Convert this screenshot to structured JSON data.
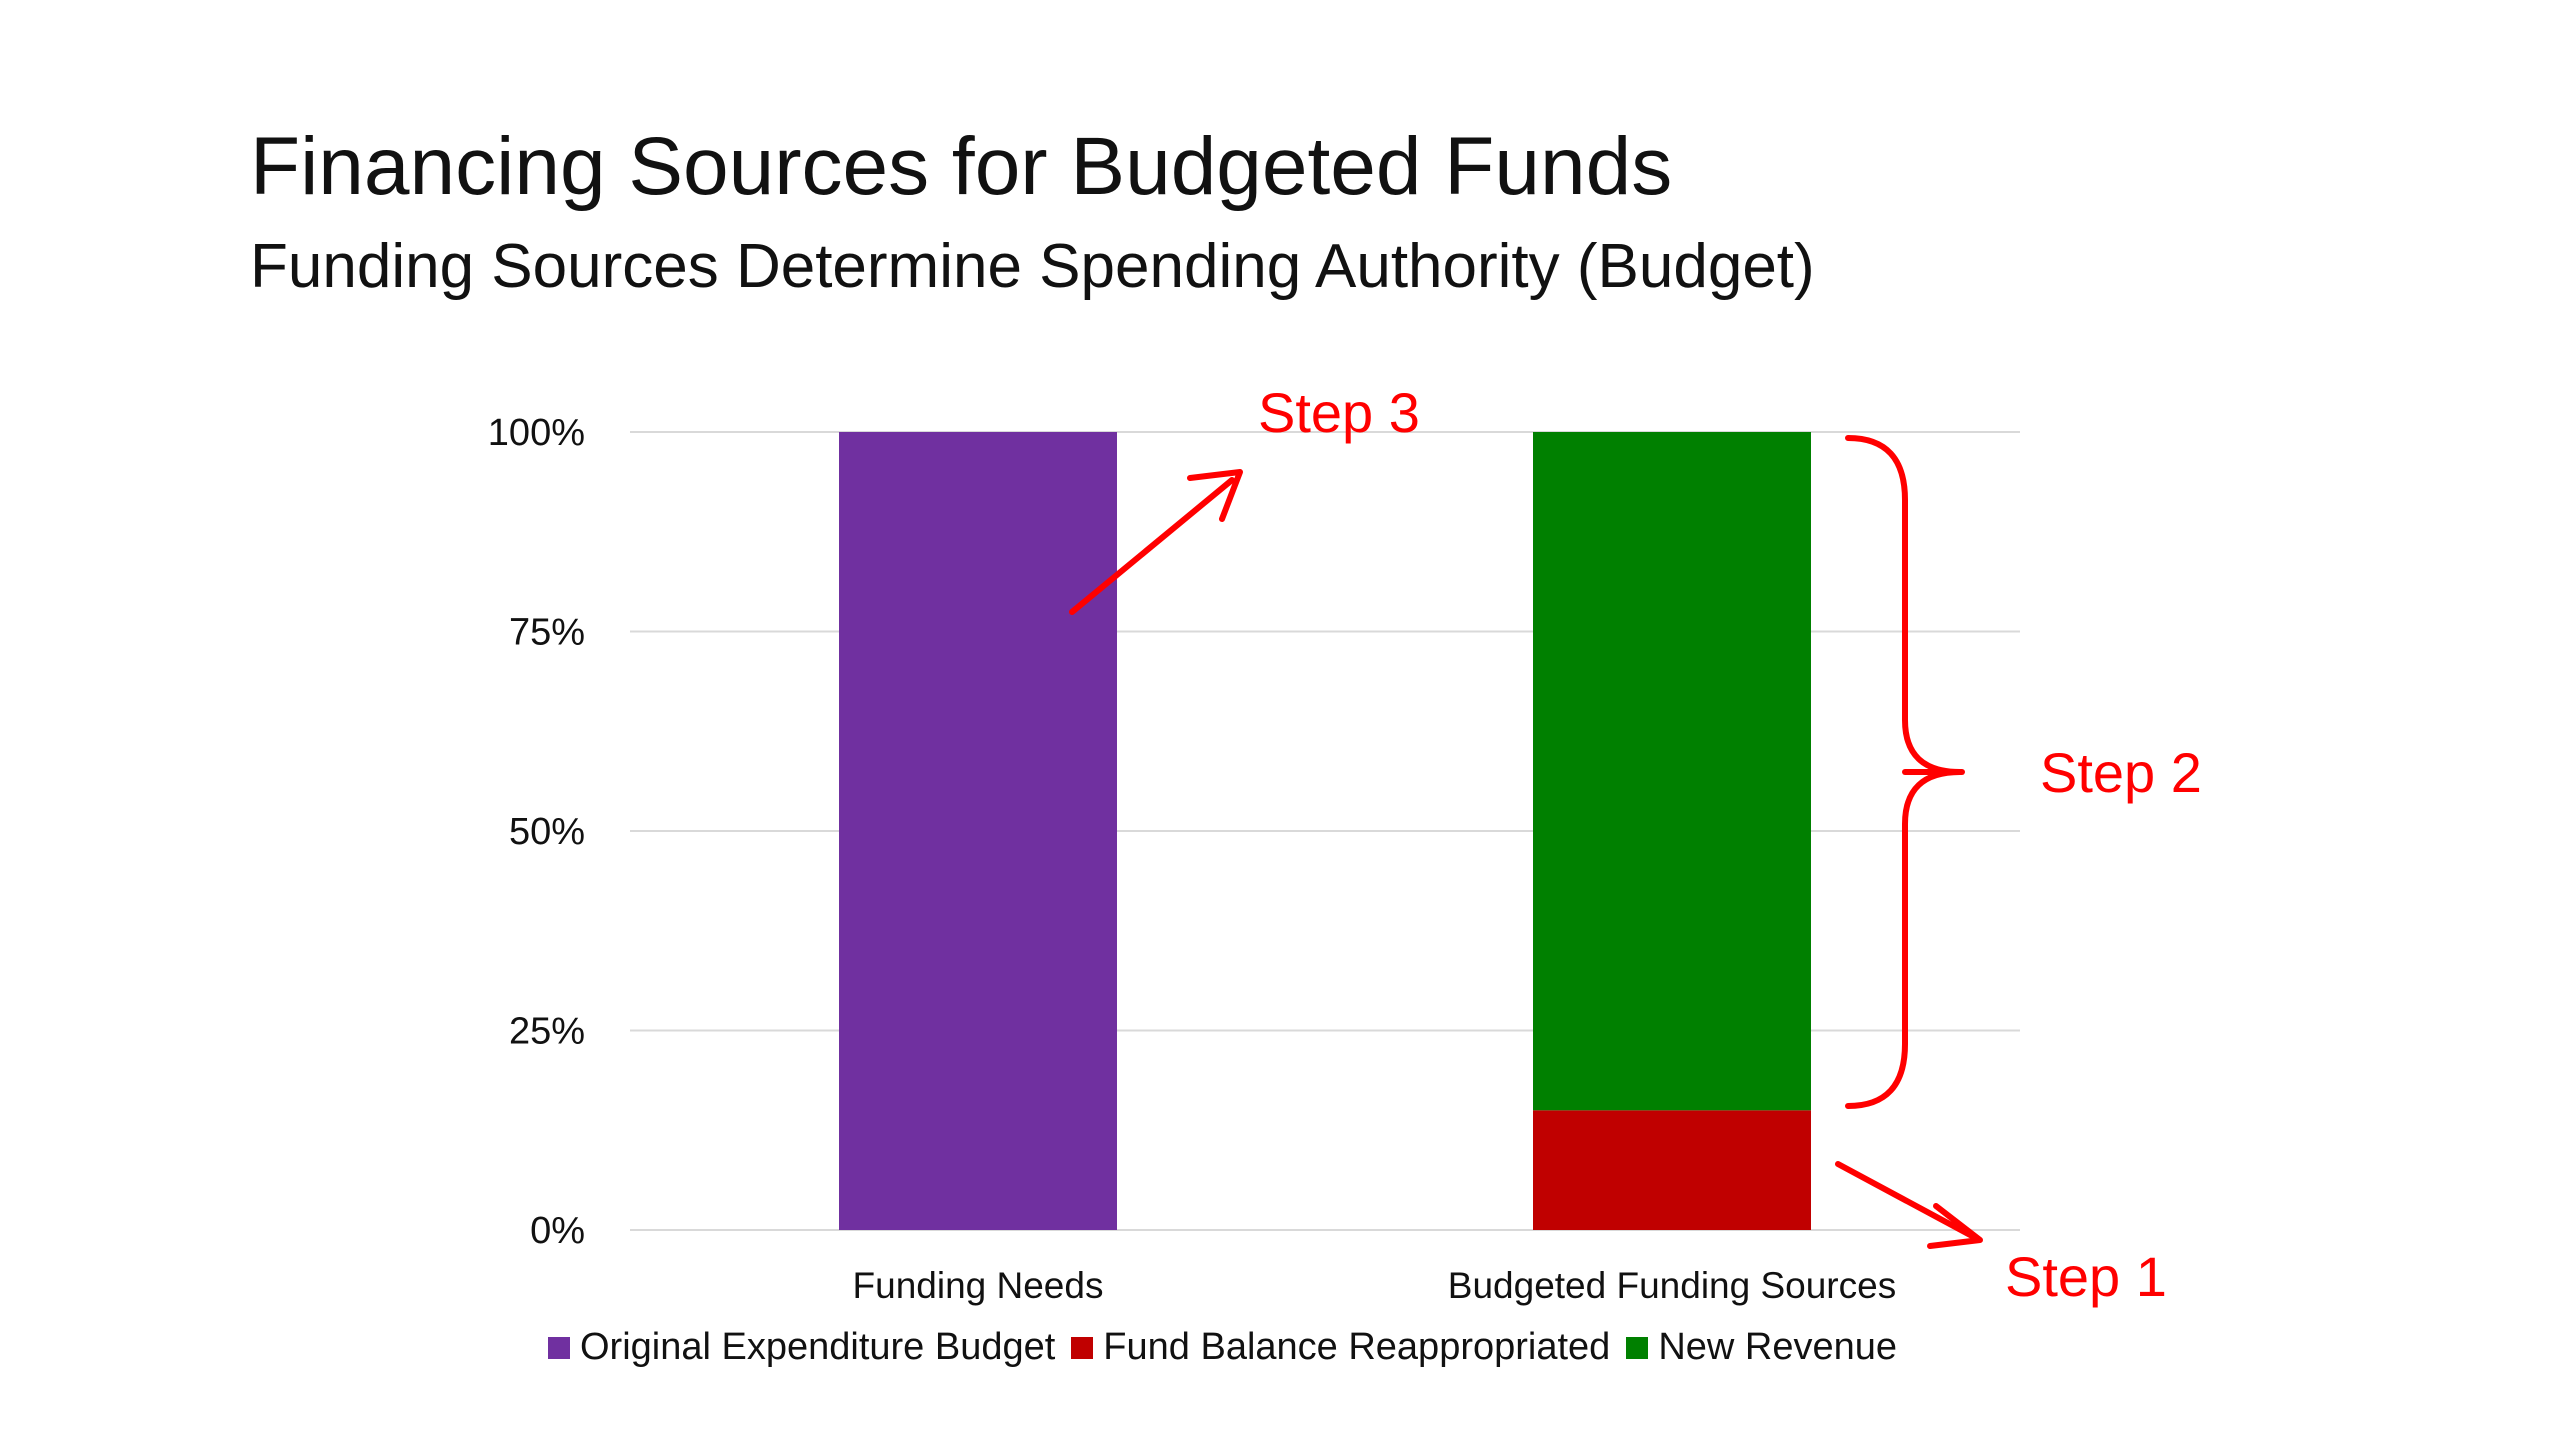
{
  "title": "Financing Sources for Budgeted Funds",
  "subtitle": "Funding Sources Determine Spending Authority (Budget)",
  "chart_data": {
    "type": "bar",
    "stacked": true,
    "categories": [
      "Funding Needs",
      "Budgeted Funding Sources"
    ],
    "series": [
      {
        "name": "Original Expenditure Budget",
        "values": [
          100,
          0
        ],
        "color": "#7030A0"
      },
      {
        "name": "Fund Balance Reappropriated",
        "values": [
          0,
          15
        ],
        "color": "#C00000"
      },
      {
        "name": "New Revenue",
        "values": [
          0,
          85
        ],
        "color": "#008000"
      }
    ],
    "ylim": [
      0,
      100
    ],
    "yticks": [
      {
        "value": 0,
        "label": "0%"
      },
      {
        "value": 25,
        "label": "25%"
      },
      {
        "value": 50,
        "label": "50%"
      },
      {
        "value": 75,
        "label": "75%"
      },
      {
        "value": 100,
        "label": "100%"
      }
    ],
    "grid": true,
    "legend": "bottom",
    "annotations": [
      {
        "text": "Step 1",
        "color": "#FF0000"
      },
      {
        "text": "Step 2",
        "color": "#FF0000"
      },
      {
        "text": "Step 3",
        "color": "#FF0000"
      }
    ]
  }
}
